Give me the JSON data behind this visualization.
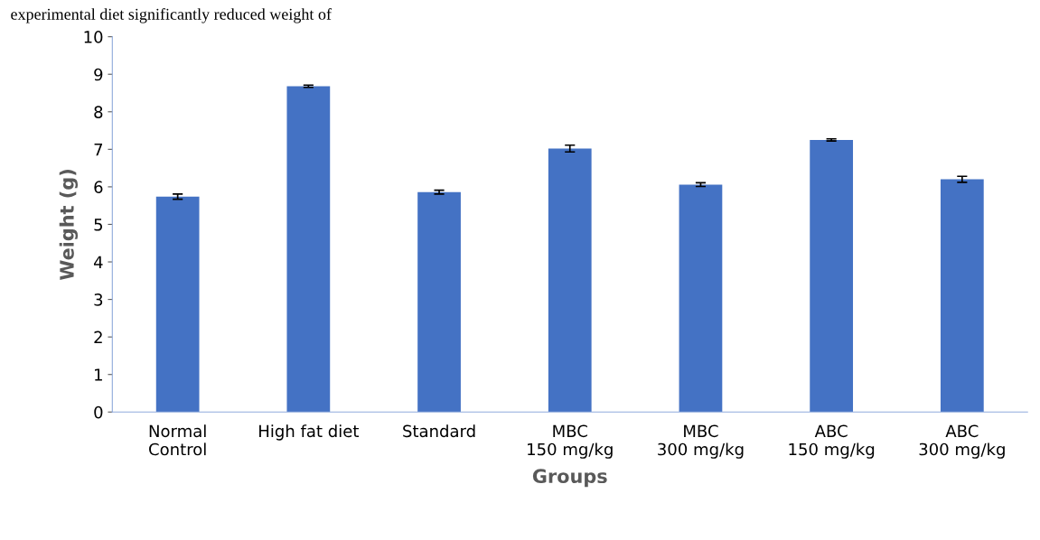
{
  "chart_data": {
    "type": "bar",
    "xlabel": "Groups",
    "ylabel": "Weight (g)",
    "annotations": [
      "experimental diet significantly reduced weight of"
    ],
    "categories": [
      "Normal\nControl",
      "High fat diet",
      "Standard",
      "MBC\n150 mg/kg",
      "MBC\n300 mg/kg",
      "ABC\n150 mg/kg",
      "ABC\n300 mg/kg"
    ],
    "values": [
      5.74,
      8.68,
      5.86,
      7.02,
      6.06,
      7.25,
      6.2
    ],
    "errors": [
      0.07,
      0.03,
      0.05,
      0.09,
      0.05,
      0.03,
      0.08
    ],
    "color": "#4472c4",
    "ylim": [
      0,
      10
    ],
    "yticks": [
      0,
      1,
      2,
      3,
      4,
      5,
      6,
      7,
      8,
      9,
      10
    ],
    "grid": false,
    "legend": false
  }
}
